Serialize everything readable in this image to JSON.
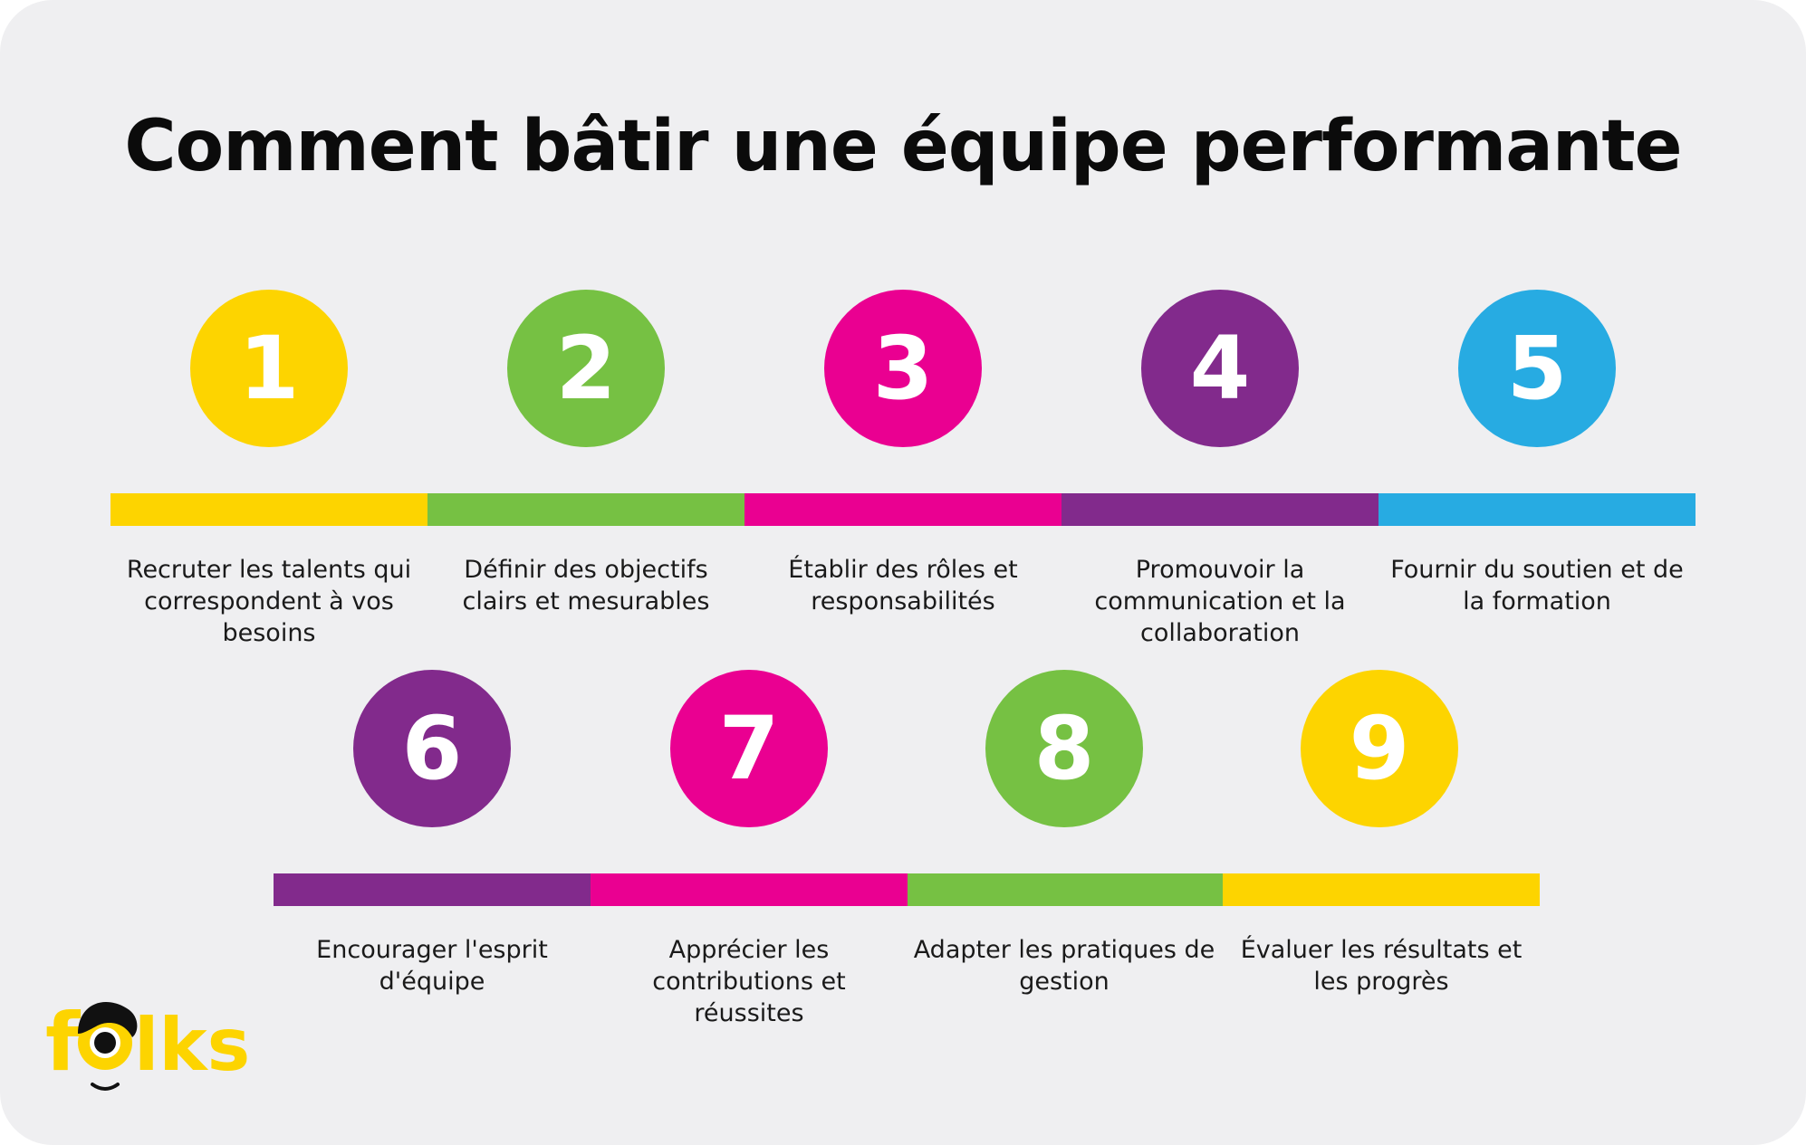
{
  "title": "Comment bâtir une équipe performante",
  "colors": {
    "yellow": "#fdd400",
    "green": "#76c143",
    "magenta": "#ea0091",
    "purple": "#822a8c",
    "blue": "#27abe2",
    "background": "#efeff1"
  },
  "steps": [
    {
      "number": "1",
      "color": "#fdd400",
      "label": "Recruter les talents qui correspondent à vos besoins"
    },
    {
      "number": "2",
      "color": "#76c143",
      "label": "Définir des objectifs clairs et mesurables"
    },
    {
      "number": "3",
      "color": "#ea0091",
      "label": "Établir des rôles et responsabilités"
    },
    {
      "number": "4",
      "color": "#822a8c",
      "label": "Promouvoir la communication et la collaboration"
    },
    {
      "number": "5",
      "color": "#27abe2",
      "label": "Fournir du soutien et de la formation"
    },
    {
      "number": "6",
      "color": "#822a8c",
      "label": "Encourager l'esprit d'équipe"
    },
    {
      "number": "7",
      "color": "#ea0091",
      "label": "Apprécier les contributions et réussites"
    },
    {
      "number": "8",
      "color": "#76c143",
      "label": "Adapter les pratiques de gestion"
    },
    {
      "number": "9",
      "color": "#fdd400",
      "label": "Évaluer les résultats et les progrès"
    }
  ],
  "logo": {
    "text": "folks",
    "color": "#fdd400"
  }
}
